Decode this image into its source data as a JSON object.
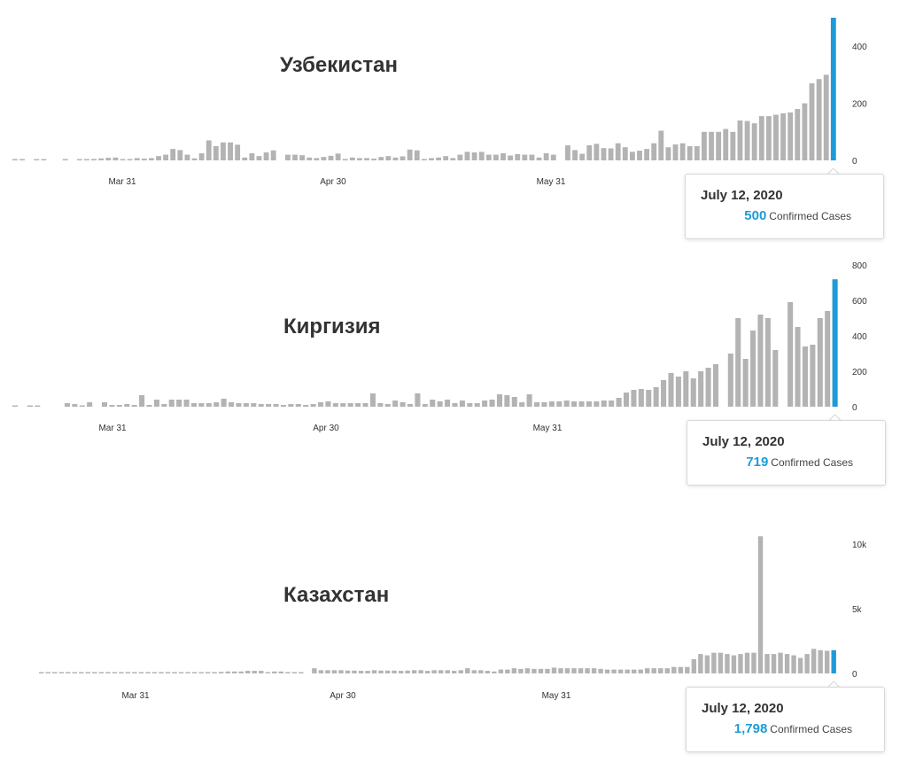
{
  "colors": {
    "bar": "#b3b3b3",
    "highlight": "#1e9bd7",
    "text": "#333333"
  },
  "chart_data": [
    {
      "type": "bar",
      "title": "Узбекистан",
      "x_tick_labels": [
        "Mar 31",
        "Apr 30",
        "May 31"
      ],
      "y_tick_labels": [
        "0",
        "200",
        "400"
      ],
      "ylim": [
        0,
        500
      ],
      "values": [
        2,
        3,
        0,
        2,
        4,
        0,
        0,
        3,
        0,
        2,
        4,
        5,
        7,
        9,
        10,
        3,
        2,
        8,
        6,
        8,
        15,
        20,
        40,
        36,
        20,
        7,
        25,
        70,
        50,
        63,
        63,
        55,
        10,
        25,
        15,
        28,
        35,
        0,
        20,
        20,
        18,
        10,
        8,
        12,
        16,
        24,
        5,
        10,
        8,
        8,
        6,
        12,
        15,
        10,
        14,
        38,
        35,
        5,
        8,
        10,
        15,
        8,
        20,
        30,
        28,
        30,
        20,
        20,
        25,
        17,
        22,
        20,
        20,
        10,
        25,
        20,
        0,
        53,
        36,
        23,
        53,
        58,
        43,
        42,
        60,
        46,
        30,
        34,
        40,
        60,
        104,
        46,
        56,
        60,
        50,
        50,
        100,
        100,
        100,
        110,
        100,
        140,
        138,
        130,
        155,
        155,
        160,
        165,
        168,
        180,
        200,
        270,
        285,
        300,
        500
      ],
      "ymax_data": 500,
      "highlight": {
        "date": "July 12, 2020",
        "value": "500",
        "label": "Confirmed Cases"
      }
    },
    {
      "type": "bar",
      "title": "Киргизия",
      "x_tick_labels": [
        "Mar 31",
        "Apr 30",
        "May 31"
      ],
      "y_tick_labels": [
        "0",
        "200",
        "400",
        "600",
        "800"
      ],
      "ylim": [
        0,
        800
      ],
      "values": [
        3,
        0,
        5,
        5,
        0,
        0,
        0,
        20,
        15,
        5,
        25,
        0,
        25,
        10,
        10,
        15,
        10,
        65,
        10,
        40,
        15,
        40,
        40,
        40,
        20,
        20,
        20,
        25,
        45,
        25,
        20,
        20,
        20,
        15,
        15,
        15,
        10,
        15,
        15,
        10,
        15,
        25,
        30,
        20,
        20,
        20,
        20,
        20,
        75,
        20,
        15,
        35,
        25,
        15,
        75,
        15,
        40,
        30,
        40,
        20,
        35,
        20,
        20,
        35,
        40,
        70,
        65,
        55,
        25,
        70,
        25,
        25,
        30,
        30,
        35,
        30,
        30,
        30,
        30,
        35,
        35,
        50,
        80,
        95,
        100,
        95,
        110,
        150,
        190,
        170,
        200,
        160,
        200,
        220,
        240,
        0,
        300,
        500,
        270,
        430,
        520,
        500,
        320,
        0,
        590,
        450,
        340,
        350,
        500,
        540,
        719
      ],
      "ymax_data": 800,
      "highlight": {
        "date": "July 12, 2020",
        "value": "719",
        "label": "Confirmed Cases"
      }
    },
    {
      "type": "bar",
      "title": "Казахстан",
      "x_tick_labels": [
        "Mar 31",
        "Apr 30",
        "May 31"
      ],
      "y_tick_labels": [
        "0",
        "5k",
        "10k"
      ],
      "ylim": [
        0,
        10000
      ],
      "values": [
        20,
        20,
        30,
        40,
        40,
        40,
        50,
        60,
        60,
        80,
        60,
        80,
        100,
        100,
        90,
        80,
        60,
        60,
        60,
        60,
        100,
        100,
        100,
        100,
        100,
        100,
        100,
        120,
        150,
        150,
        150,
        200,
        200,
        200,
        100,
        150,
        150,
        100,
        100,
        100,
        0,
        400,
        250,
        250,
        250,
        250,
        220,
        220,
        200,
        200,
        250,
        220,
        220,
        220,
        200,
        220,
        250,
        250,
        200,
        250,
        250,
        250,
        200,
        250,
        400,
        250,
        250,
        200,
        150,
        300,
        300,
        400,
        350,
        400,
        350,
        350,
        350,
        450,
        400,
        400,
        400,
        400,
        400,
        400,
        350,
        300,
        300,
        300,
        300,
        300,
        300,
        400,
        400,
        400,
        400,
        500,
        500,
        500,
        1100,
        1500,
        1400,
        1600,
        1600,
        1500,
        1400,
        1500,
        1600,
        1600,
        10600,
        1500,
        1500,
        1600,
        1500,
        1400,
        1200,
        1500,
        1900,
        1800,
        1750,
        1798
      ],
      "ymax_data": 10000,
      "highlight": {
        "date": "July 12, 2020",
        "value": "1,798",
        "label": "Confirmed Cases"
      }
    }
  ]
}
